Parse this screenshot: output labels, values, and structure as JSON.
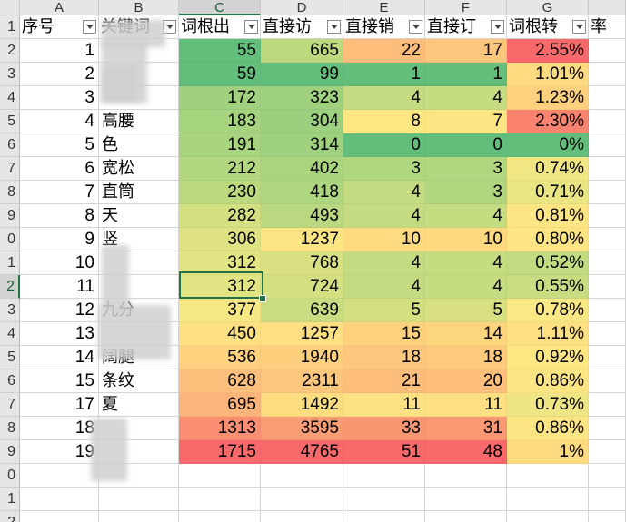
{
  "columns": [
    "A",
    "B",
    "C",
    "D",
    "E",
    "F",
    "G"
  ],
  "selected_column": "C",
  "selected_row": "2",
  "row_numbers": [
    "1",
    "2",
    "3",
    "4",
    "5",
    "6",
    "7",
    "8",
    "9",
    "0",
    "1",
    "2",
    "3",
    "4",
    "5",
    "6",
    "7",
    "8",
    "9",
    "0",
    "1",
    "2"
  ],
  "headers": [
    "序号",
    "关键词",
    "词根出现",
    "直接访",
    "直接销",
    "直接订",
    "词根转化率"
  ],
  "header_visible": [
    "序号",
    "关键词",
    "词根出",
    "直接访",
    "直接销",
    "直接订",
    "词根转",
    "率"
  ],
  "rows": [
    {
      "seq": "1",
      "kw": "",
      "c": "55",
      "d": "665",
      "e": "22",
      "f": "17",
      "g": "2.55%"
    },
    {
      "seq": "2",
      "kw": "",
      "c": "59",
      "d": "99",
      "e": "1",
      "f": "1",
      "g": "1.01%"
    },
    {
      "seq": "3",
      "kw": "",
      "c": "172",
      "d": "323",
      "e": "4",
      "f": "4",
      "g": "1.23%"
    },
    {
      "seq": "4",
      "kw": "高腰",
      "c": "183",
      "d": "304",
      "e": "8",
      "f": "7",
      "g": "2.30%"
    },
    {
      "seq": "5",
      "kw": "色",
      "c": "191",
      "d": "314",
      "e": "0",
      "f": "0",
      "g": "0%"
    },
    {
      "seq": "6",
      "kw": "宽松",
      "c": "212",
      "d": "402",
      "e": "3",
      "f": "3",
      "g": "0.74%"
    },
    {
      "seq": "7",
      "kw": "直筒",
      "c": "230",
      "d": "418",
      "e": "4",
      "f": "3",
      "g": "0.71%"
    },
    {
      "seq": "8",
      "kw": "天",
      "c": "282",
      "d": "493",
      "e": "4",
      "f": "4",
      "g": "0.81%"
    },
    {
      "seq": "9",
      "kw": "竖",
      "c": "306",
      "d": "1237",
      "e": "10",
      "f": "10",
      "g": "0.80%"
    },
    {
      "seq": "10",
      "kw": "",
      "c": "312",
      "d": "768",
      "e": "4",
      "f": "4",
      "g": "0.52%"
    },
    {
      "seq": "11",
      "kw": "",
      "c": "312",
      "d": "724",
      "e": "4",
      "f": "4",
      "g": "0.55%"
    },
    {
      "seq": "12",
      "kw": "九分",
      "c": "377",
      "d": "639",
      "e": "5",
      "f": "5",
      "g": "0.78%"
    },
    {
      "seq": "13",
      "kw": "",
      "c": "450",
      "d": "1257",
      "e": "15",
      "f": "14",
      "g": "1.11%"
    },
    {
      "seq": "14",
      "kw": "阔腿",
      "c": "536",
      "d": "1940",
      "e": "18",
      "f": "18",
      "g": "0.92%"
    },
    {
      "seq": "15",
      "kw": "条纹",
      "c": "628",
      "d": "2311",
      "e": "21",
      "f": "20",
      "g": "0.86%"
    },
    {
      "seq": "17",
      "kw": "夏",
      "c": "695",
      "d": "1492",
      "e": "11",
      "f": "11",
      "g": "0.73%"
    },
    {
      "seq": "18",
      "kw": "",
      "c": "1313",
      "d": "3595",
      "e": "33",
      "f": "31",
      "g": "0.86%"
    },
    {
      "seq": "19",
      "kw": "",
      "c": "1715",
      "d": "4765",
      "e": "51",
      "f": "48",
      "g": "1%"
    }
  ],
  "colors": {
    "C": [
      "#63be7b",
      "#63be7b",
      "#a1d17e",
      "#a5d37e",
      "#a8d47f",
      "#b3d780",
      "#bcd980",
      "#d3df81",
      "#dfe282",
      "#e2e383",
      "#e2e383",
      "#f4e784",
      "#fedf81",
      "#fed17e",
      "#fdc07c",
      "#fdb47a",
      "#f98e72",
      "#f8696b"
    ],
    "D": [
      "#bcd980",
      "#63be7b",
      "#9fd17e",
      "#9dd07e",
      "#9ed07e",
      "#abd47f",
      "#aed57f",
      "#b9d880",
      "#fee583",
      "#d8e082",
      "#d3df81",
      "#c8dc81",
      "#fee082",
      "#fed07e",
      "#fdc67d",
      "#fedd81",
      "#fa9d75",
      "#f8696b"
    ],
    "E": [
      "#fdbd7b",
      "#63be7b",
      "#c4db81",
      "#fee683",
      "#63be7b",
      "#b1d680",
      "#c4db81",
      "#c4db81",
      "#feda80",
      "#c4db81",
      "#c4db81",
      "#d3df81",
      "#fed17e",
      "#fdc87d",
      "#fdbd7b",
      "#fee182",
      "#fa9773",
      "#f8696b"
    ],
    "F": [
      "#fdc67d",
      "#63be7b",
      "#c6dc81",
      "#fee583",
      "#63be7b",
      "#b2d680",
      "#b2d680",
      "#c6dc81",
      "#fed97f",
      "#c6dc81",
      "#c6dc81",
      "#d9e082",
      "#fed57f",
      "#fdca7d",
      "#fdbf7b",
      "#fedf81",
      "#fa9873",
      "#f8696b"
    ],
    "G": [
      "#f8696b",
      "#feda80",
      "#fed17e",
      "#fa8370",
      "#63be7b",
      "#f1e684",
      "#eae583",
      "#fee583",
      "#fee483",
      "#c2da80",
      "#c8dc81",
      "#fae884",
      "#fedf81",
      "#fee683",
      "#fee583",
      "#eee584",
      "#fee583",
      "#fedb80"
    ]
  }
}
